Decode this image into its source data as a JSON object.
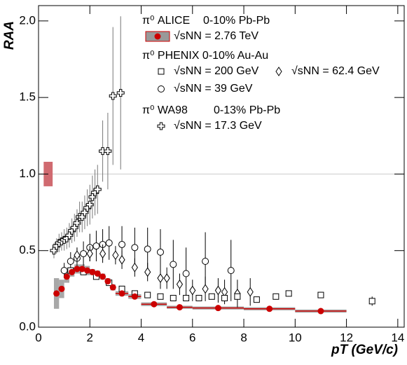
{
  "chart_data": {
    "type": "scatter",
    "x_label": "pT (GeV/c)",
    "y_label": "RAA",
    "xlim": [
      0,
      14.25
    ],
    "ylim": [
      0,
      2.1
    ],
    "xticks": [
      0,
      2,
      4,
      6,
      8,
      10,
      12,
      14
    ],
    "yticks": [
      {
        "value": 0,
        "label": "0.0"
      },
      {
        "value": 0.5,
        "label": "0.5"
      },
      {
        "value": 1,
        "label": "1.0"
      },
      {
        "value": 1.5,
        "label": "1.5"
      },
      {
        "value": 2,
        "label": "2.0"
      }
    ],
    "reference_line": 1,
    "normalization": {
      "value": 1,
      "error": 0.08,
      "color": "#d06a70"
    },
    "legend_groups": [
      {
        "title": "π⁰ ALICE",
        "system": "0-10% Pb-Pb"
      },
      {
        "title": "π⁰ PHENIX 0-10% Au-Au"
      },
      {
        "title": "π⁰ WA98",
        "system": "0-13% Pb-Pb"
      }
    ],
    "series": [
      {
        "name": "√sNN = 2.76 TeV",
        "marker": "circle-filled",
        "color": "#cc0000",
        "sys_color": "#999999",
        "x": [
          0.7,
          0.9,
          1.1,
          1.3,
          1.5,
          1.7,
          1.9,
          2.1,
          2.3,
          2.5,
          2.7,
          2.9,
          3.25,
          3.75,
          4.5,
          5.5,
          7,
          9,
          11
        ],
        "values": [
          0.22,
          0.25,
          0.33,
          0.36,
          0.38,
          0.38,
          0.37,
          0.36,
          0.35,
          0.33,
          0.3,
          0.26,
          0.22,
          0.2,
          0.15,
          0.13,
          0.125,
          0.12,
          0.105
        ],
        "errors": [
          0.01,
          0.01,
          0.01,
          0.01,
          0.01,
          0.01,
          0.01,
          0.01,
          0.01,
          0.01,
          0.01,
          0.01,
          0.01,
          0.01,
          0.01,
          0.01,
          0.01,
          0.01,
          0.02
        ],
        "sys": [
          0.1,
          0.06,
          0.04,
          0.03,
          0.03,
          0.03,
          0.03,
          0.02,
          0.02,
          0.02,
          0.02,
          0.02,
          0.015,
          0.015,
          0.012,
          0.01,
          0.01,
          0.01,
          0.01
        ],
        "xerr": [
          0.1,
          0.1,
          0.1,
          0.1,
          0.1,
          0.1,
          0.1,
          0.1,
          0.1,
          0.1,
          0.1,
          0.1,
          0.25,
          0.25,
          0.5,
          0.5,
          1,
          1,
          1
        ]
      },
      {
        "name": "√sNN = 200 GeV",
        "marker": "square-open",
        "color": "#000000",
        "x": [
          1.25,
          1.75,
          2.25,
          2.75,
          3.25,
          3.75,
          4.25,
          4.75,
          5.25,
          5.75,
          6.25,
          6.75,
          7.25,
          7.75,
          8.5,
          9.25,
          9.75,
          11,
          13
        ],
        "values": [
          0.37,
          0.36,
          0.33,
          0.29,
          0.25,
          0.22,
          0.21,
          0.2,
          0.19,
          0.19,
          0.19,
          0.2,
          0.19,
          0.2,
          0.18,
          0.2,
          0.22,
          0.21,
          0.17
        ],
        "errors": [
          0.01,
          0.01,
          0.01,
          0.01,
          0.01,
          0.01,
          0.01,
          0.01,
          0.01,
          0.01,
          0.01,
          0.015,
          0.015,
          0.015,
          0.015,
          0.02,
          0.02,
          0.02,
          0.03
        ]
      },
      {
        "name": "√sNN = 62.4 GeV",
        "marker": "diamond-open",
        "color": "#000000",
        "x": [
          1.5,
          2.0,
          2.5,
          3.0,
          3.25,
          3.75,
          4.25,
          4.75,
          5.0,
          5.5,
          6.0,
          6.5,
          7.0,
          7.25,
          7.75,
          8.25
        ],
        "values": [
          0.47,
          0.48,
          0.48,
          0.47,
          0.44,
          0.39,
          0.36,
          0.32,
          0.32,
          0.28,
          0.24,
          0.25,
          0.24,
          0.23,
          0.22,
          0.23
        ],
        "errors": [
          0.05,
          0.05,
          0.06,
          0.06,
          0.06,
          0.06,
          0.06,
          0.07,
          0.07,
          0.07,
          0.07,
          0.08,
          0.08,
          0.08,
          0.09,
          0.09
        ]
      },
      {
        "name": "√sNN = 39 GeV",
        "marker": "circle-open",
        "color": "#000000",
        "x": [
          1.0,
          1.25,
          1.5,
          1.75,
          2.0,
          2.25,
          2.5,
          2.75,
          3.25,
          3.75,
          4.25,
          4.75,
          5.25,
          5.75,
          6.5,
          7.5
        ],
        "values": [
          0.37,
          0.43,
          0.45,
          0.48,
          0.52,
          0.53,
          0.54,
          0.55,
          0.54,
          0.52,
          0.51,
          0.49,
          0.41,
          0.35,
          0.43,
          0.37
        ],
        "errors": [
          0.05,
          0.06,
          0.07,
          0.08,
          0.09,
          0.1,
          0.1,
          0.11,
          0.12,
          0.13,
          0.14,
          0.15,
          0.16,
          0.17,
          0.19,
          0.2
        ]
      },
      {
        "name": "√sNN = 17.3 GeV",
        "marker": "cross-open",
        "color": "#000000",
        "x": [
          0.6,
          0.7,
          0.8,
          0.9,
          1.0,
          1.1,
          1.2,
          1.3,
          1.4,
          1.5,
          1.6,
          1.7,
          1.8,
          1.9,
          2.0,
          2.1,
          2.2,
          2.3,
          2.5,
          2.7,
          2.9,
          3.2
        ],
        "values": [
          0.5,
          0.53,
          0.55,
          0.56,
          0.57,
          0.58,
          0.6,
          0.63,
          0.65,
          0.68,
          0.72,
          0.72,
          0.75,
          0.78,
          0.8,
          0.85,
          0.88,
          0.9,
          1.15,
          1.15,
          1.51,
          1.53
        ],
        "errors": [
          0.05,
          0.05,
          0.06,
          0.06,
          0.07,
          0.07,
          0.08,
          0.08,
          0.09,
          0.09,
          0.1,
          0.1,
          0.11,
          0.12,
          0.13,
          0.14,
          0.15,
          0.16,
          0.2,
          0.25,
          0.45,
          0.5
        ]
      }
    ]
  }
}
